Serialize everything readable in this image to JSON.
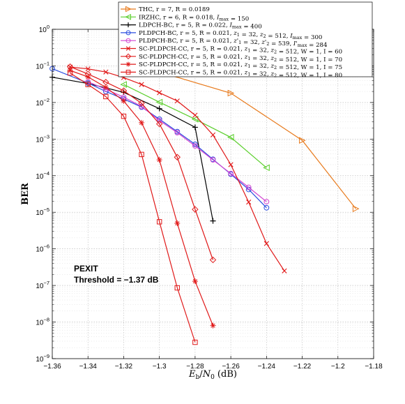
{
  "chart_data": {
    "type": "line",
    "xlabel": "E_b/N_0 (dB)",
    "ylabel": "BER",
    "xlim": [
      -1.36,
      -1.18
    ],
    "ylim_log10": [
      -9,
      0
    ],
    "y_scale": "log",
    "x_ticks": [
      -1.36,
      -1.34,
      -1.32,
      -1.3,
      -1.28,
      -1.26,
      -1.24,
      -1.22,
      -1.2,
      -1.18
    ],
    "x_tick_labels": [
      "−1.36",
      "−1.34",
      "−1.32",
      "−1.3",
      "−1.28",
      "−1.26",
      "−1.24",
      "−1.22",
      "−1.2",
      "−1.18"
    ],
    "y_tick_exponents": [
      0,
      -1,
      -2,
      -3,
      -4,
      -5,
      -6,
      -7,
      -8,
      -9
    ],
    "grid": true,
    "legend_position": "top-right",
    "annotation_lines": [
      "PEXIT",
      "Threshold = −1.37 dB"
    ],
    "series": [
      {
        "name": "THC, r = 7, R = 0.0189",
        "color": "#e87a1c",
        "marker": "triangle-right",
        "x": [
          -1.3,
          -1.26,
          -1.22,
          -1.19
        ],
        "y": [
          0.068,
          0.018,
          0.00092,
          1.25e-05
        ]
      },
      {
        "name": "IRZHC, r = 6, R = 0.018, I_max = 150",
        "color": "#5ccf2e",
        "marker": "triangle-left",
        "x": [
          -1.32,
          -1.3,
          -1.28,
          -1.26,
          -1.24
        ],
        "y": [
          0.031,
          0.0102,
          0.0035,
          0.00112,
          0.000165
        ]
      },
      {
        "name": "LDPCH-BC, r = 5, R = 0.022, I_max = 400",
        "color": "#000000",
        "marker": "plus",
        "x": [
          -1.36,
          -1.34,
          -1.32,
          -1.3,
          -1.28,
          -1.27
        ],
        "y": [
          0.049,
          0.033,
          0.019,
          0.0068,
          0.0021,
          5.8e-06
        ]
      },
      {
        "name": "PLDPCH-BC, r = 5, R = 0.021, z_1 = 32, z_2 = 512, I_max = 300",
        "color": "#2a4de0",
        "marker": "circle",
        "x": [
          -1.36,
          -1.34,
          -1.33,
          -1.32,
          -1.31,
          -1.3,
          -1.29,
          -1.28,
          -1.27,
          -1.26,
          -1.25,
          -1.24
        ],
        "y": [
          0.084,
          0.034,
          0.02,
          0.0125,
          0.0075,
          0.0035,
          0.0016,
          0.00072,
          0.00028,
          0.00011,
          4.2e-05,
          1.33e-05
        ]
      },
      {
        "name": "PLDPCH-BC, r = 5, R = 0.021, z'_1 = 32, z'_2 = 539, I'_max = 284",
        "color": "#d245d2",
        "marker": "circle",
        "x": [
          -1.34,
          -1.33,
          -1.32,
          -1.31,
          -1.3,
          -1.29,
          -1.28,
          -1.27,
          -1.26,
          -1.25,
          -1.24
        ],
        "y": [
          0.037,
          0.023,
          0.014,
          0.0078,
          0.0032,
          0.0015,
          0.00065,
          0.00027,
          0.000115,
          4.8e-05,
          1.95e-05
        ]
      },
      {
        "name": "SC-PLDPCH-CC, r = 5, R = 0.021, z_1 = 32, z_2 = 512, W = 1, I = 60",
        "color": "#e01818",
        "marker": "x",
        "x": [
          -1.35,
          -1.34,
          -1.33,
          -1.32,
          -1.31,
          -1.3,
          -1.29,
          -1.28,
          -1.27,
          -1.26,
          -1.25,
          -1.24,
          -1.23
        ],
        "y": [
          0.093,
          0.083,
          0.068,
          0.048,
          0.031,
          0.0185,
          0.011,
          0.0045,
          0.0013,
          0.0002,
          1.9e-05,
          1.4e-06,
          2.5e-07
        ]
      },
      {
        "name": "SC-PLDPCH-CC, r = 5, R = 0.021, z_1 = 32, z_2 = 512, W = 1, I = 70",
        "color": "#e01818",
        "marker": "diamond",
        "x": [
          -1.35,
          -1.34,
          -1.33,
          -1.32,
          -1.31,
          -1.3,
          -1.29,
          -1.28,
          -1.27
        ],
        "y": [
          0.095,
          0.06,
          0.036,
          0.021,
          0.0095,
          0.0026,
          0.00032,
          1.2e-05,
          5e-07
        ]
      },
      {
        "name": "SC-PLDPCH-CC, r = 5, R = 0.021, z_1 = 32, z_2 = 512, W = 1, I = 75",
        "color": "#e01818",
        "marker": "asterisk",
        "x": [
          -1.35,
          -1.34,
          -1.33,
          -1.32,
          -1.31,
          -1.3,
          -1.29,
          -1.28,
          -1.27
        ],
        "y": [
          0.075,
          0.05,
          0.026,
          0.011,
          0.0028,
          0.00027,
          5e-06,
          1.3e-07,
          8e-09
        ]
      },
      {
        "name": "SC-PLDPCH-CC, r = 5, R = 0.021, z_1 = 32, z_2 = 512, W = 1, I = 80",
        "color": "#e01818",
        "marker": "square",
        "x": [
          -1.35,
          -1.34,
          -1.33,
          -1.32,
          -1.31,
          -1.3,
          -1.29,
          -1.28
        ],
        "y": [
          0.064,
          0.031,
          0.0145,
          0.0042,
          0.00038,
          5.5e-06,
          8.6e-08,
          2.8e-09
        ]
      }
    ]
  }
}
